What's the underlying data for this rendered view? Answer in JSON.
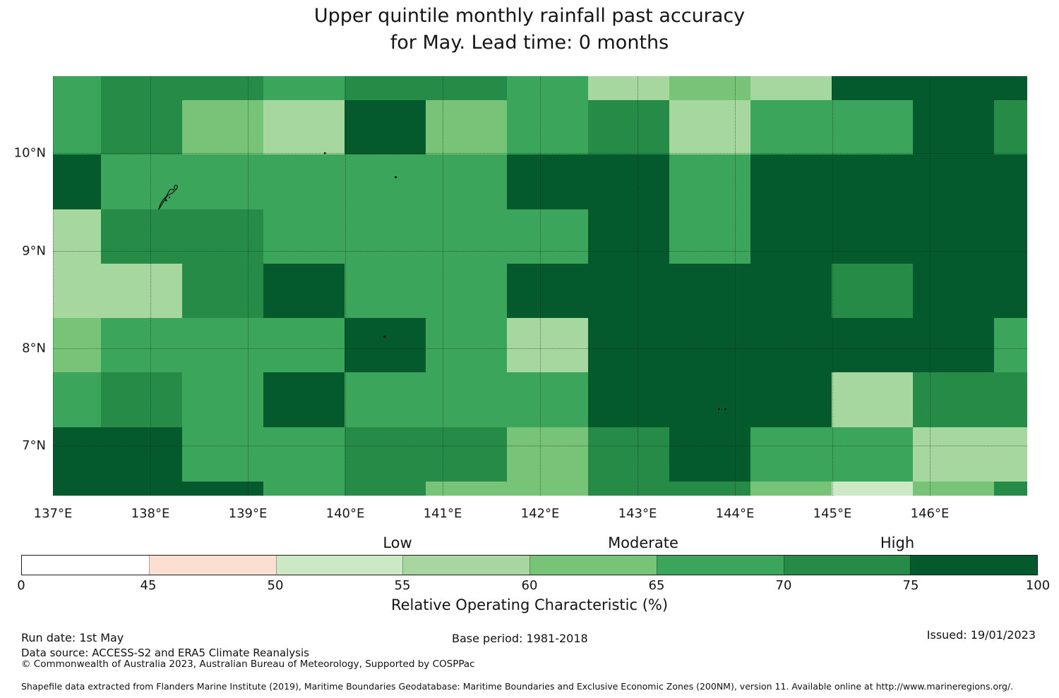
{
  "title": {
    "line1": "Upper quintile monthly rainfall past accuracy",
    "line2": "for May. Lead time: 0 months"
  },
  "map": {
    "y_tick_labels": [
      "10°N",
      "9°N",
      "8°N",
      "7°N"
    ],
    "x_tick_labels": [
      "137°E",
      "138°E",
      "139°E",
      "140°E",
      "141°E",
      "142°E",
      "143°E",
      "144°E",
      "145°E",
      "146°E"
    ]
  },
  "colorbar": {
    "category_labels": [
      "Low",
      "Moderate",
      "High"
    ],
    "tick_labels": [
      "0",
      "45",
      "50",
      "55",
      "60",
      "65",
      "70",
      "75",
      "100"
    ],
    "axis_label": "Relative Operating Characteristic (%)"
  },
  "footer": {
    "run_date": "Run date: 1st May",
    "data_source": "Data source: ACCESS-S2 and ERA5 Climate Reanalysis",
    "copyright": "© Commonwealth of Australia 2023, Australian Bureau of Meteorology, Supported by COSPPac",
    "base_period": "Base period: 1981-2018",
    "issued": "Issued: 19/01/2023",
    "shapefile_note": "Shapefile data extracted from Flanders Marine Institute (2019), Maritime Boundaries Geodatabase: Maritime Boundaries and Exclusive Economic Zones (200NM), version 11. Available online at http://www.marineregions.org/."
  },
  "chart_data": {
    "type": "heatmap",
    "title": "Upper quintile monthly rainfall past accuracy for May. Lead time: 0 months",
    "xlabel_ticks_deg_east": [
      137,
      138,
      139,
      140,
      141,
      142,
      143,
      144,
      145,
      146
    ],
    "ylabel_ticks_deg_north": [
      10,
      9,
      8,
      7
    ],
    "lon_range": [
      137.0,
      147.0
    ],
    "lat_range": [
      6.5,
      10.8
    ],
    "column_edges_deg_east": [
      137.0,
      137.49,
      138.33,
      139.16,
      139.99,
      140.83,
      141.66,
      142.49,
      143.33,
      144.16,
      144.99,
      145.83,
      146.66,
      147.0
    ],
    "row_edges_deg_north": [
      10.8,
      10.55,
      9.99,
      9.43,
      8.88,
      8.32,
      7.76,
      7.2,
      6.64,
      6.5
    ],
    "legend_title": "Relative Operating Characteristic (%)",
    "bins": [
      {
        "range": "0-45",
        "label": "",
        "color": "#ffffff"
      },
      {
        "range": "45-50",
        "label": "",
        "color": "#fbe0d1"
      },
      {
        "range": "50-55",
        "label": "Low",
        "color": "#cde8c4"
      },
      {
        "range": "55-60",
        "label": "Low",
        "color": "#a5d79e"
      },
      {
        "range": "60-65",
        "label": "Moderate",
        "color": "#77c478"
      },
      {
        "range": "65-70",
        "label": "Moderate",
        "color": "#3ba55c"
      },
      {
        "range": "70-75",
        "label": "High",
        "color": "#268b47"
      },
      {
        "range": "75-100",
        "label": "High",
        "color": "#045a2c"
      }
    ],
    "grid_note": "Rows north-to-south (10.8N to 6.5N), columns west-to-east (137E to 147E); values are colorbar bin indices into chart_data.bins",
    "grid": [
      [
        5,
        6,
        6,
        5,
        6,
        6,
        5,
        3,
        4,
        3,
        7,
        7,
        7
      ],
      [
        5,
        6,
        4,
        3,
        7,
        4,
        5,
        6,
        3,
        5,
        5,
        7,
        6
      ],
      [
        7,
        5,
        5,
        5,
        5,
        5,
        7,
        7,
        5,
        7,
        7,
        7,
        7
      ],
      [
        3,
        6,
        6,
        5,
        5,
        5,
        5,
        7,
        5,
        7,
        7,
        7,
        7
      ],
      [
        3,
        3,
        6,
        7,
        5,
        5,
        7,
        7,
        7,
        7,
        6,
        7,
        7
      ],
      [
        4,
        5,
        5,
        5,
        7,
        5,
        3,
        7,
        7,
        7,
        7,
        7,
        5
      ],
      [
        5,
        6,
        5,
        7,
        5,
        5,
        5,
        7,
        7,
        7,
        3,
        6,
        6
      ],
      [
        7,
        7,
        5,
        5,
        6,
        6,
        4,
        6,
        7,
        5,
        5,
        3,
        3
      ],
      [
        7,
        7,
        7,
        5,
        6,
        4,
        4,
        6,
        6,
        4,
        2,
        4,
        6
      ]
    ],
    "grid_on": true,
    "legend_position": "bottom"
  }
}
